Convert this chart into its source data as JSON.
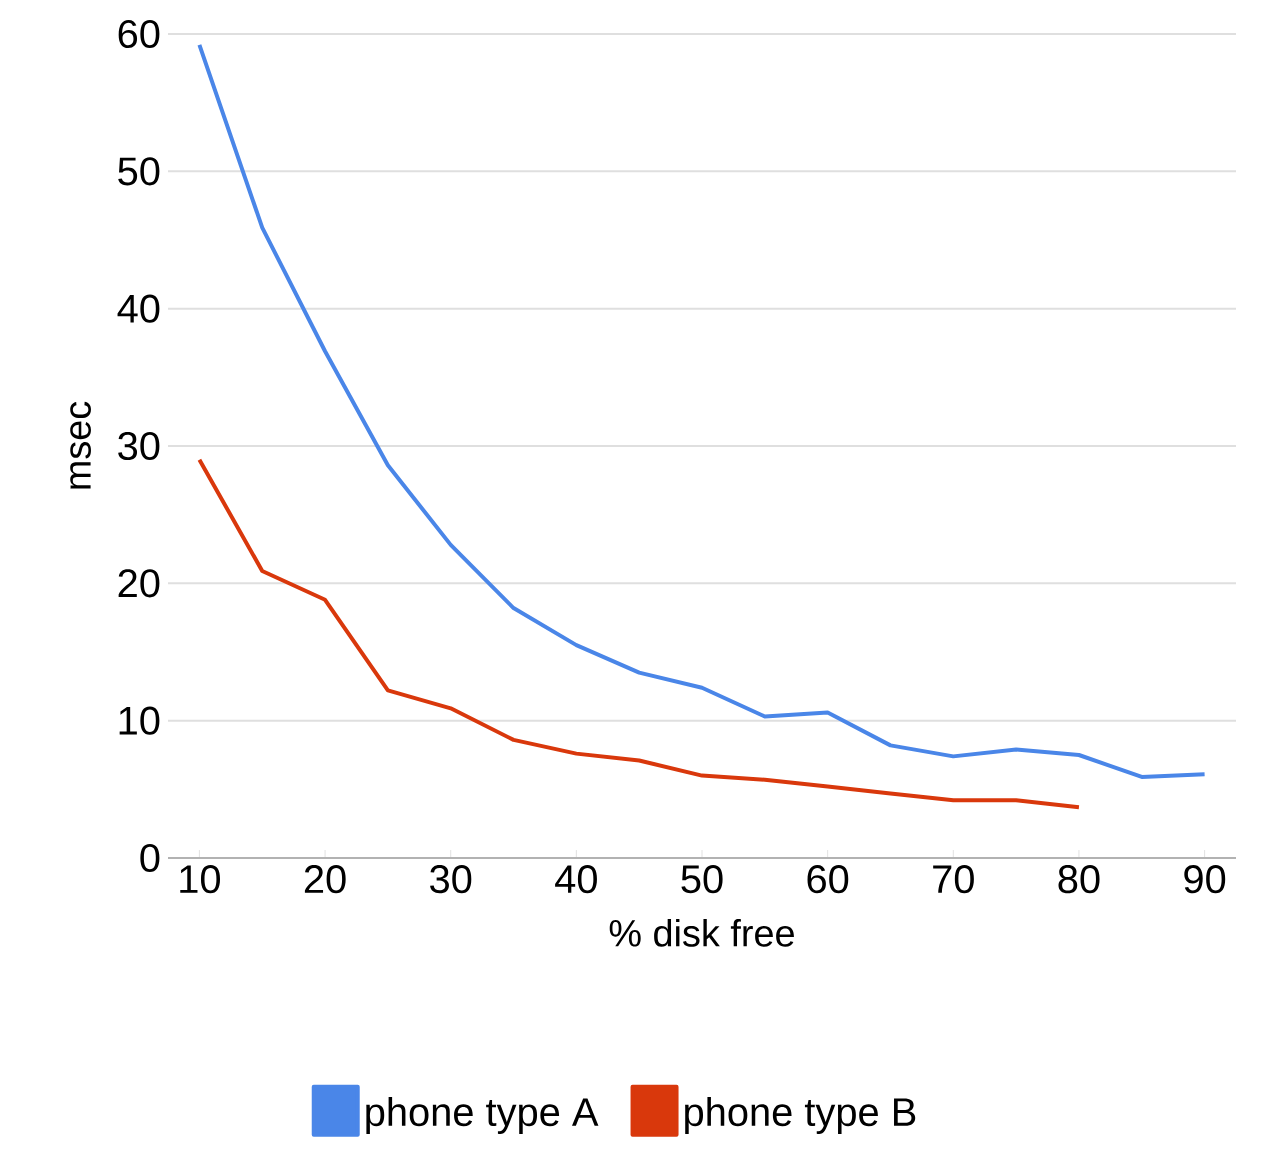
{
  "chart_data": {
    "type": "line",
    "xlabel": "% disk free",
    "ylabel": "msec",
    "x": [
      10,
      15,
      20,
      25,
      30,
      35,
      40,
      45,
      50,
      55,
      60,
      65,
      70,
      75,
      80,
      85,
      90
    ],
    "series": [
      {
        "name": "phone type A",
        "color": "#4a86e8",
        "values": [
          59.2,
          45.9,
          36.9,
          28.6,
          22.8,
          18.2,
          15.5,
          13.5,
          12.4,
          10.3,
          10.6,
          8.2,
          7.4,
          7.9,
          7.5,
          5.9,
          6.1
        ]
      },
      {
        "name": "phone type B",
        "color": "#d9380c",
        "values": [
          29.0,
          20.9,
          18.8,
          12.2,
          10.9,
          8.6,
          7.6,
          7.1,
          6.0,
          5.7,
          5.2,
          4.7,
          4.2,
          4.2,
          3.7,
          null,
          null
        ]
      }
    ],
    "xlim": [
      7.5,
      92.5
    ],
    "ylim": [
      0,
      60
    ],
    "xticks": [
      10,
      20,
      30,
      40,
      50,
      60,
      70,
      80,
      90
    ],
    "yticks": [
      0,
      10,
      20,
      30,
      40,
      50,
      60
    ],
    "grid": "y",
    "legend": "bottom",
    "marker": "none",
    "line_style": "solid"
  }
}
